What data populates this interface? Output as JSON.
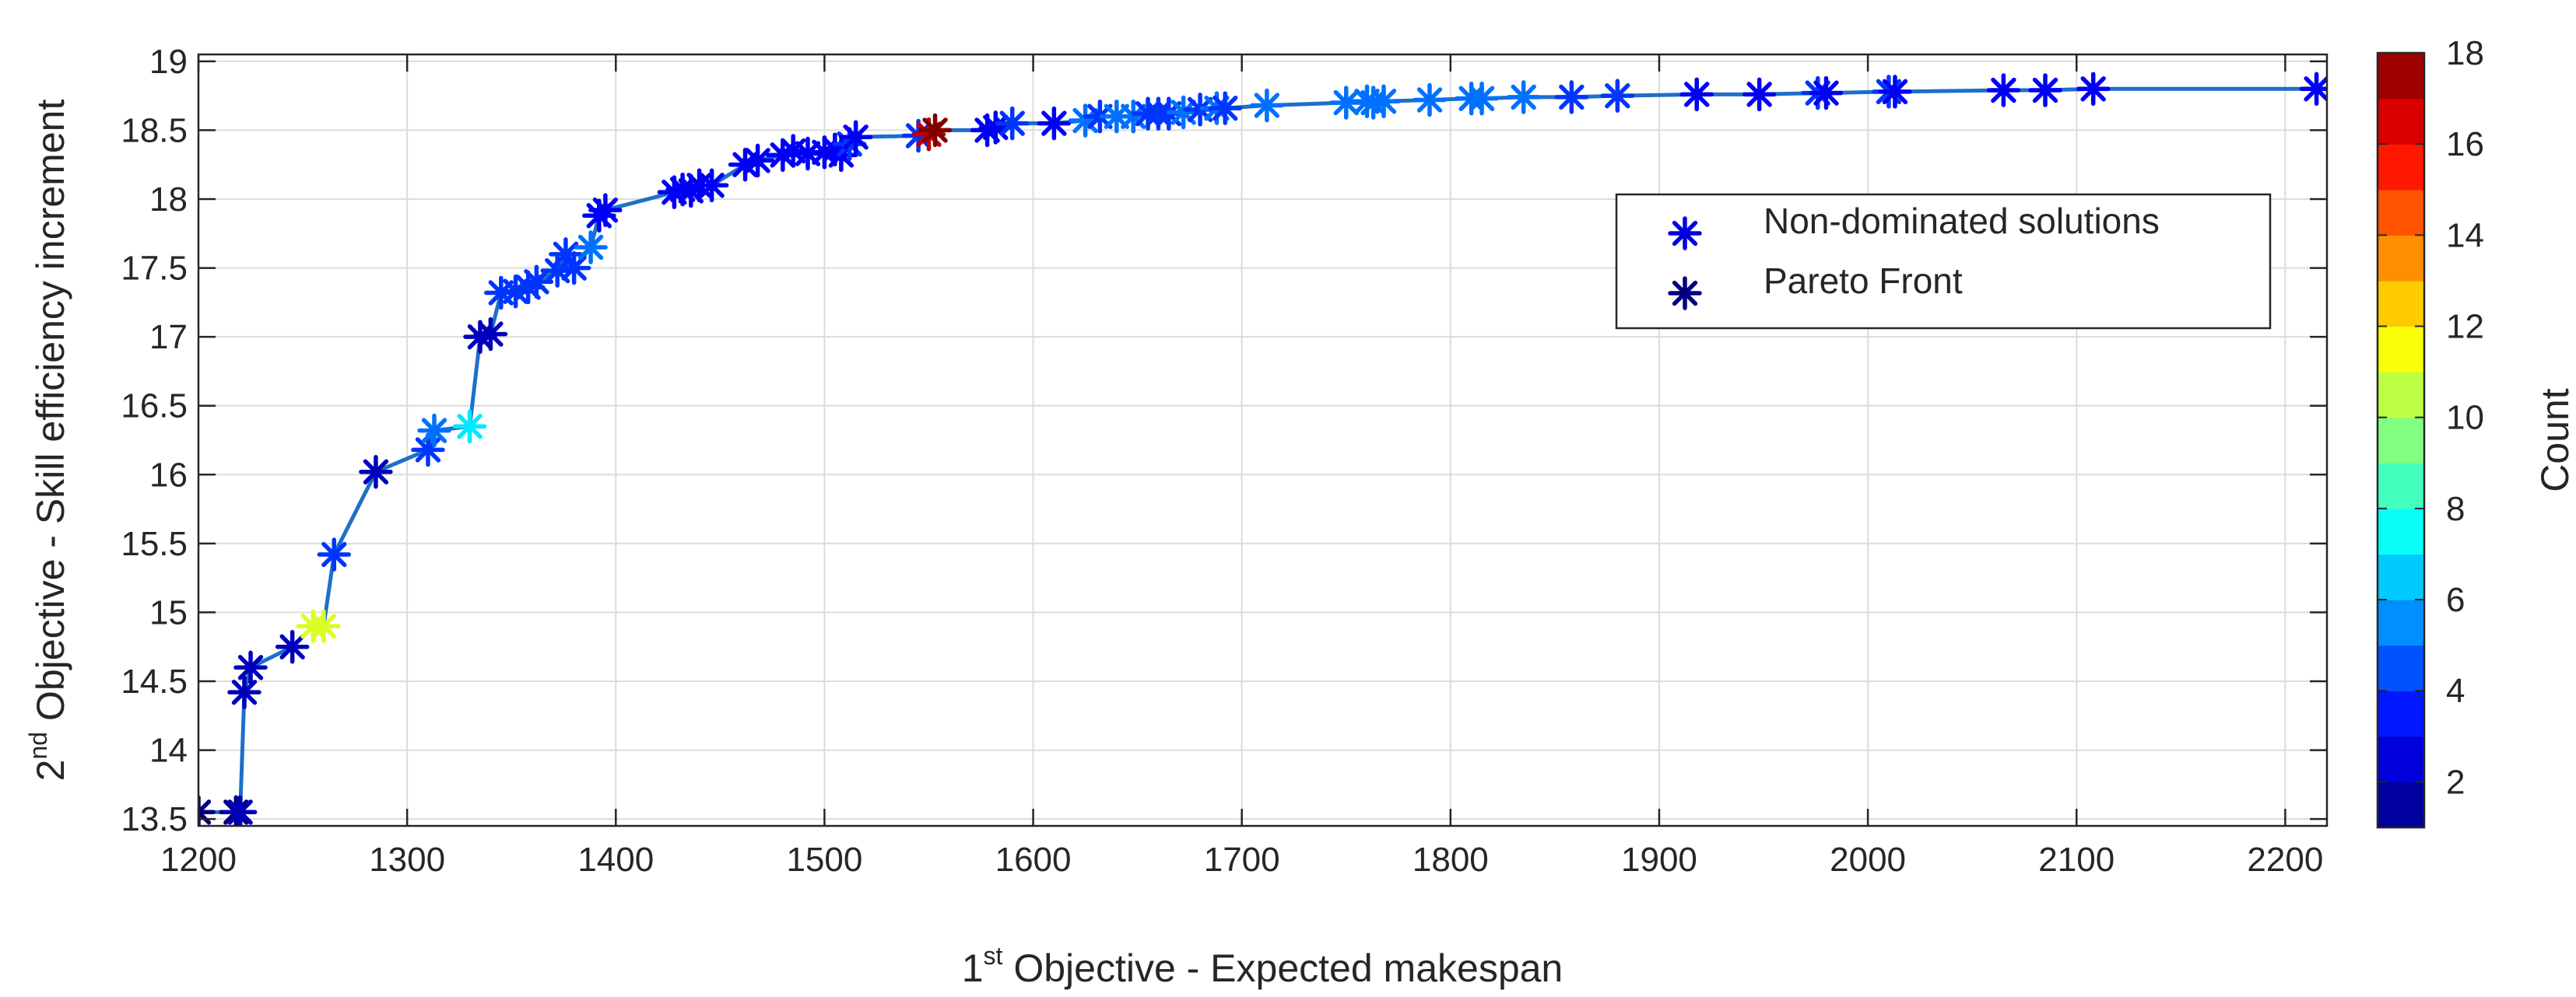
{
  "chart_data": {
    "type": "scatter",
    "xlabel_main": "1",
    "xlabel_sup": "st",
    "xlabel_rest": " Objective - Expected makespan",
    "ylabel_main": "2",
    "ylabel_sup": "nd",
    "ylabel_rest": " Objective - Skill efficiency increment",
    "xlim": [
      1200,
      2220
    ],
    "ylim": [
      13.45,
      19.05
    ],
    "xticks": [
      1200,
      1300,
      1400,
      1500,
      1600,
      1700,
      1800,
      1900,
      2000,
      2100,
      2200
    ],
    "yticks": [
      13.5,
      14,
      14.5,
      15,
      15.5,
      16,
      16.5,
      17,
      17.5,
      18,
      18.5,
      19
    ],
    "grid": true,
    "legend": {
      "placement": "upper-right",
      "entries": [
        "Non-dominated solutions",
        "Pareto Front"
      ],
      "colors": [
        "#0000e0",
        "#000080"
      ]
    },
    "colorbar": {
      "label": "Count",
      "range": [
        1,
        18
      ],
      "ticks": [
        2,
        4,
        6,
        8,
        10,
        12,
        14,
        16,
        18
      ]
    },
    "line_color": "#1e6fc8",
    "series": [
      {
        "x": [
          1200,
          1218,
          1220,
          1222,
          1225,
          1245,
          1255,
          1260,
          1265,
          1285,
          1310,
          1313,
          1330,
          1335,
          1340,
          1345,
          1352,
          1358,
          1362,
          1372,
          1376,
          1380,
          1388,
          1392,
          1395,
          1428,
          1432,
          1436,
          1440,
          1446,
          1462,
          1468,
          1480,
          1485,
          1492,
          1500,
          1505,
          1508,
          1512,
          1515,
          1545,
          1550,
          1553,
          1578,
          1582,
          1590,
          1610,
          1625,
          1632,
          1640,
          1648,
          1655,
          1660,
          1665,
          1672,
          1680,
          1688,
          1692,
          1712,
          1750,
          1760,
          1763,
          1768,
          1790,
          1810,
          1815,
          1835,
          1858,
          1880,
          1918,
          1948,
          1976,
          1980,
          2010,
          2013,
          2065,
          2085,
          2108,
          2215
        ],
        "y": [
          13.55,
          13.55,
          13.55,
          14.42,
          14.6,
          14.75,
          14.9,
          14.9,
          15.42,
          16.02,
          16.18,
          16.32,
          16.35,
          17.0,
          17.02,
          17.32,
          17.33,
          17.36,
          17.4,
          17.48,
          17.6,
          17.5,
          17.65,
          17.88,
          17.92,
          18.05,
          18.07,
          18.06,
          18.1,
          18.1,
          18.25,
          18.28,
          18.32,
          18.35,
          18.33,
          18.34,
          18.36,
          18.32,
          18.4,
          18.45,
          18.46,
          18.47,
          18.5,
          18.5,
          18.52,
          18.55,
          18.55,
          18.57,
          18.6,
          18.6,
          18.6,
          18.62,
          18.62,
          18.62,
          18.63,
          18.65,
          18.66,
          18.66,
          18.68,
          18.7,
          18.71,
          18.7,
          18.71,
          18.72,
          18.73,
          18.73,
          18.74,
          18.74,
          18.75,
          18.76,
          18.76,
          18.77,
          18.77,
          18.78,
          18.78,
          18.79,
          18.79,
          18.8,
          18.8
        ],
        "count": [
          1,
          1,
          2,
          2,
          2,
          2,
          11,
          11,
          4,
          2,
          4,
          5,
          7,
          2,
          2,
          4,
          4,
          4,
          4,
          4,
          4,
          4,
          5,
          3,
          3,
          3,
          3,
          3,
          3,
          3,
          3,
          3,
          3,
          3,
          3,
          3,
          3,
          3,
          4,
          3,
          4,
          17,
          18,
          3,
          3,
          4,
          3,
          5,
          4,
          5,
          5,
          4,
          4,
          4,
          5,
          4,
          5,
          4,
          5,
          5,
          5,
          5,
          5,
          5,
          5,
          5,
          5,
          4,
          4,
          3,
          3,
          4,
          3,
          4,
          3,
          3,
          3,
          3,
          3
        ]
      }
    ]
  }
}
